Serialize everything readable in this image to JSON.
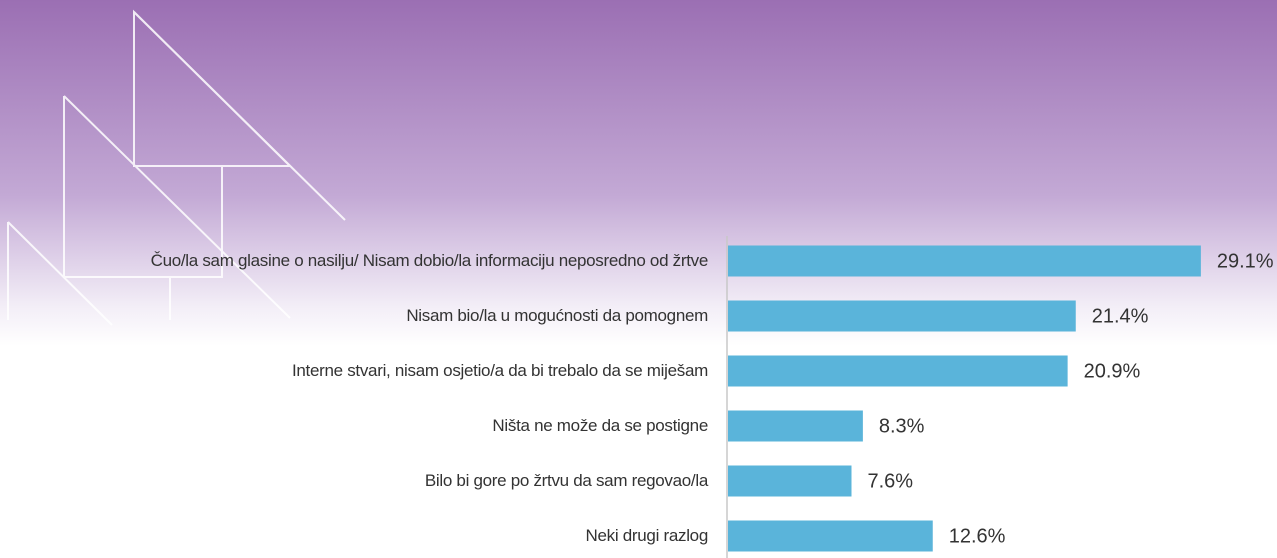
{
  "chart_data": {
    "type": "bar",
    "orientation": "horizontal",
    "categories": [
      "Čuo/la sam glasine o nasilju/ Nisam dobio/la informaciju neposredno od žrtve",
      "Nisam bio/la u mogućnosti da pomognem",
      "Interne stvari, nisam osjetio/a da bi trebalo da se miješam",
      "Ništa ne može da se postigne",
      "Bilo bi gore po žrtvu da sam regovao/la",
      "Neki drugi razlog"
    ],
    "values": [
      29.1,
      21.4,
      20.9,
      8.3,
      7.6,
      12.6
    ],
    "value_labels": [
      "29.1%",
      "21.4%",
      "20.9%",
      "8.3%",
      "7.6%",
      "12.6%"
    ],
    "color": "#5ab4da"
  }
}
